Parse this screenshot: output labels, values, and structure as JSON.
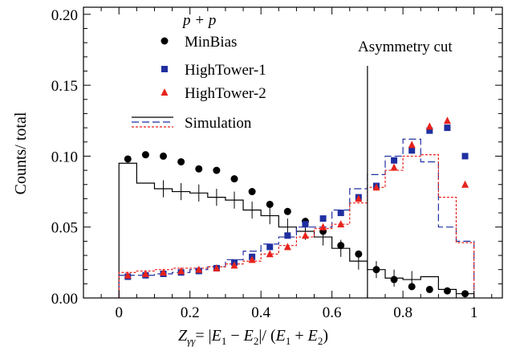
{
  "chart_data": {
    "type": "scatter",
    "xlabel": "Z_γγ = |E1 − E2| / (E1 + E2)",
    "xlabel_parts": {
      "z": "Z",
      "sub": "γγ",
      "eq": "= |",
      "e1": "E",
      "one": "1",
      "minus": " − ",
      "e2": "E",
      "two": "2",
      "mid": "|/ (",
      "e1b": "E",
      "oneb": "1",
      "plus": " + ",
      "e2b": "E",
      "twob": "2",
      "close": ")"
    },
    "ylabel": "Counts/ total",
    "xlim": [
      -0.1,
      1.08
    ],
    "ylim": [
      0,
      0.205
    ],
    "x_ticks": [
      "0",
      "0.2",
      "0.4",
      "0.6",
      "0.8",
      "1"
    ],
    "y_ticks": [
      "0.00",
      "0.05",
      "0.10",
      "0.15",
      "0.20"
    ],
    "legend_title": "p + p",
    "legend": [
      "MinBias",
      "HighTower-1",
      "HighTower-2",
      "Simulation"
    ],
    "annotation": "Asymmetry cut",
    "cut_x": 0.7,
    "bin_edges": [
      0,
      0.05,
      0.1,
      0.15,
      0.2,
      0.25,
      0.3,
      0.35,
      0.4,
      0.45,
      0.5,
      0.55,
      0.6,
      0.65,
      0.7,
      0.75,
      0.8,
      0.85,
      0.9,
      0.95,
      1.0
    ],
    "series": [
      {
        "name": "MinBias",
        "marker": "circle",
        "color": "#000000",
        "x": [
          0.025,
          0.075,
          0.125,
          0.175,
          0.225,
          0.275,
          0.325,
          0.375,
          0.425,
          0.475,
          0.525,
          0.575,
          0.625,
          0.675,
          0.725,
          0.775,
          0.825,
          0.875,
          0.925,
          0.975
        ],
        "y": [
          0.098,
          0.101,
          0.1,
          0.096,
          0.091,
          0.09,
          0.084,
          0.075,
          0.066,
          0.061,
          0.054,
          0.047,
          0.037,
          0.031,
          0.02,
          0.013,
          0.008,
          0.006,
          0.005,
          0.003
        ]
      },
      {
        "name": "HighTower-1",
        "marker": "square",
        "color": "#1f2fa0",
        "x": [
          0.025,
          0.075,
          0.125,
          0.175,
          0.225,
          0.275,
          0.325,
          0.375,
          0.425,
          0.475,
          0.525,
          0.575,
          0.625,
          0.675,
          0.725,
          0.775,
          0.825,
          0.875,
          0.925,
          0.975
        ],
        "y": [
          0.015,
          0.016,
          0.017,
          0.018,
          0.019,
          0.021,
          0.025,
          0.029,
          0.036,
          0.044,
          0.052,
          0.056,
          0.06,
          0.071,
          0.079,
          0.097,
          0.104,
          0.118,
          0.12,
          0.1
        ]
      },
      {
        "name": "HighTower-2",
        "marker": "triangle",
        "color": "#e8221c",
        "x": [
          0.025,
          0.075,
          0.125,
          0.175,
          0.225,
          0.275,
          0.325,
          0.375,
          0.425,
          0.475,
          0.525,
          0.575,
          0.625,
          0.675,
          0.725,
          0.775,
          0.825,
          0.875,
          0.925,
          0.975
        ],
        "y": [
          0.016,
          0.017,
          0.018,
          0.019,
          0.02,
          0.021,
          0.023,
          0.027,
          0.031,
          0.036,
          0.044,
          0.05,
          0.052,
          0.07,
          0.078,
          0.092,
          0.108,
          0.121,
          0.125,
          0.08
        ]
      },
      {
        "name": "Simulation MinBias",
        "style": "solid",
        "color": "#000000",
        "y": [
          0.095,
          0.081,
          0.077,
          0.075,
          0.074,
          0.071,
          0.069,
          0.062,
          0.058,
          0.05,
          0.047,
          0.043,
          0.035,
          0.026,
          0.02,
          0.014,
          0.013,
          0.015,
          0.006,
          0.003
        ]
      },
      {
        "name": "Simulation HighTower-1",
        "style": "dashed",
        "color": "#1f2fa0",
        "y": [
          0.016,
          0.016,
          0.017,
          0.018,
          0.02,
          0.022,
          0.027,
          0.033,
          0.038,
          0.043,
          0.05,
          0.05,
          0.062,
          0.077,
          0.087,
          0.1,
          0.112,
          0.096,
          0.05,
          0.04
        ]
      },
      {
        "name": "Simulation HighTower-2",
        "style": "dotted",
        "color": "#e8221c",
        "y": [
          0.018,
          0.019,
          0.02,
          0.021,
          0.021,
          0.022,
          0.024,
          0.026,
          0.031,
          0.037,
          0.043,
          0.049,
          0.052,
          0.067,
          0.078,
          0.09,
          0.1,
          0.101,
          0.071,
          0.039
        ]
      }
    ]
  }
}
